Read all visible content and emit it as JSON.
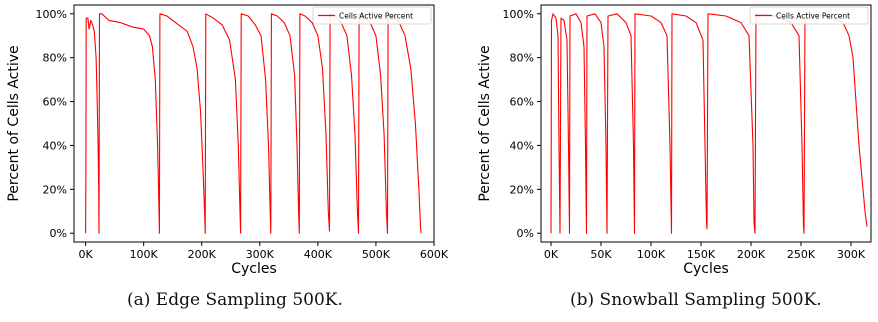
{
  "figure": {
    "captions": [
      "(a) Edge Sampling 500K.",
      "(b) Snowball Sampling 500K."
    ]
  },
  "chart_data": [
    {
      "type": "line",
      "panel": "a",
      "xlabel": "Cycles",
      "ylabel": "Percent of Cells Active",
      "xlim": [
        -20000,
        600000
      ],
      "ylim": [
        -4,
        104
      ],
      "x_ticks": [
        0,
        100000,
        200000,
        300000,
        400000,
        500000,
        600000
      ],
      "x_tick_labels": [
        "0K",
        "100K",
        "200K",
        "300K",
        "400K",
        "500K",
        "600K"
      ],
      "y_ticks": [
        0,
        20,
        40,
        60,
        80,
        100
      ],
      "y_tick_labels": [
        "0%",
        "20%",
        "40%",
        "60%",
        "80%",
        "100%"
      ],
      "legend": {
        "position": "top-right",
        "entries": [
          "Cells Active Percent"
        ]
      },
      "series": [
        {
          "name": "Cells Active Percent",
          "color": "#ff0000",
          "points": [
            [
              0,
              0
            ],
            [
              500,
              28
            ],
            [
              1000,
              98
            ],
            [
              4000,
              98
            ],
            [
              6000,
              93
            ],
            [
              9000,
              97
            ],
            [
              12000,
              95
            ],
            [
              15000,
              92
            ],
            [
              18000,
              80
            ],
            [
              20000,
              60
            ],
            [
              21500,
              40
            ],
            [
              22500,
              20
            ],
            [
              23000,
              0
            ],
            [
              24000,
              100
            ],
            [
              28000,
              100
            ],
            [
              40000,
              97
            ],
            [
              60000,
              96
            ],
            [
              80000,
              94
            ],
            [
              100000,
              93
            ],
            [
              110000,
              90
            ],
            [
              115000,
              85
            ],
            [
              120000,
              70
            ],
            [
              124000,
              40
            ],
            [
              126000,
              15
            ],
            [
              127000,
              0
            ],
            [
              128000,
              100
            ],
            [
              140000,
              99
            ],
            [
              160000,
              95
            ],
            [
              175000,
              92
            ],
            [
              185000,
              85
            ],
            [
              192000,
              75
            ],
            [
              198000,
              55
            ],
            [
              202000,
              30
            ],
            [
              205000,
              10
            ],
            [
              206000,
              0
            ],
            [
              207000,
              100
            ],
            [
              220000,
              98
            ],
            [
              235000,
              95
            ],
            [
              248000,
              88
            ],
            [
              258000,
              70
            ],
            [
              263000,
              40
            ],
            [
              266000,
              8
            ],
            [
              267000,
              0
            ],
            [
              268000,
              100
            ],
            [
              280000,
              99
            ],
            [
              292000,
              95
            ],
            [
              302000,
              90
            ],
            [
              310000,
              70
            ],
            [
              315000,
              40
            ],
            [
              318000,
              8
            ],
            [
              319000,
              0
            ],
            [
              320000,
              100
            ],
            [
              330000,
              99
            ],
            [
              342000,
              96
            ],
            [
              352000,
              90
            ],
            [
              360000,
              72
            ],
            [
              364000,
              40
            ],
            [
              367000,
              8
            ],
            [
              368000,
              0
            ],
            [
              369000,
              100
            ],
            [
              378000,
              99
            ],
            [
              390000,
              96
            ],
            [
              400000,
              90
            ],
            [
              408000,
              75
            ],
            [
              414000,
              45
            ],
            [
              418000,
              10
            ],
            [
              420000,
              1
            ],
            [
              421000,
              100
            ],
            [
              430000,
              99
            ],
            [
              440000,
              96
            ],
            [
              450000,
              90
            ],
            [
              458000,
              72
            ],
            [
              464000,
              45
            ],
            [
              468000,
              10
            ],
            [
              470000,
              0
            ],
            [
              471000,
              100
            ],
            [
              480000,
              99
            ],
            [
              490000,
              96
            ],
            [
              500000,
              90
            ],
            [
              508000,
              72
            ],
            [
              514000,
              45
            ],
            [
              518000,
              10
            ],
            [
              520000,
              0
            ],
            [
              521000,
              100
            ],
            [
              530000,
              99
            ],
            [
              540000,
              96
            ],
            [
              550000,
              90
            ],
            [
              560000,
              75
            ],
            [
              568000,
              50
            ],
            [
              574000,
              20
            ],
            [
              577000,
              2
            ],
            [
              578000,
              0
            ]
          ]
        }
      ]
    },
    {
      "type": "line",
      "panel": "b",
      "xlabel": "Cycles",
      "ylabel": "Percent of Cells Active",
      "xlim": [
        -10000,
        320000
      ],
      "ylim": [
        -4,
        104
      ],
      "x_ticks": [
        0,
        50000,
        100000,
        150000,
        200000,
        250000,
        300000
      ],
      "x_tick_labels": [
        "0K",
        "50K",
        "100K",
        "150K",
        "200K",
        "250K",
        "300K"
      ],
      "y_ticks": [
        0,
        20,
        40,
        60,
        80,
        100
      ],
      "y_tick_labels": [
        "0%",
        "20%",
        "40%",
        "60%",
        "80%",
        "100%"
      ],
      "legend": {
        "position": "top-right",
        "entries": [
          "Cells Active Percent"
        ]
      },
      "series": [
        {
          "name": "Cells Active Percent",
          "color": "#ff0000",
          "points": [
            [
              0,
              0
            ],
            [
              500,
              97
            ],
            [
              2000,
              100
            ],
            [
              5000,
              98
            ],
            [
              7000,
              90
            ],
            [
              8000,
              40
            ],
            [
              9000,
              0
            ],
            [
              10000,
              98
            ],
            [
              13000,
              97
            ],
            [
              16000,
              88
            ],
            [
              17500,
              40
            ],
            [
              18500,
              0
            ],
            [
              19000,
              99
            ],
            [
              25000,
              100
            ],
            [
              30000,
              96
            ],
            [
              33000,
              85
            ],
            [
              34500,
              40
            ],
            [
              35500,
              0
            ],
            [
              36000,
              99
            ],
            [
              44000,
              100
            ],
            [
              50000,
              96
            ],
            [
              53000,
              85
            ],
            [
              55000,
              40
            ],
            [
              56000,
              0
            ],
            [
              57000,
              99
            ],
            [
              66000,
              100
            ],
            [
              75000,
              96
            ],
            [
              80000,
              90
            ],
            [
              82500,
              40
            ],
            [
              83500,
              0
            ],
            [
              84000,
              100
            ],
            [
              100000,
              99
            ],
            [
              110000,
              96
            ],
            [
              116000,
              90
            ],
            [
              119000,
              40
            ],
            [
              120500,
              0
            ],
            [
              121000,
              100
            ],
            [
              135000,
              99
            ],
            [
              145000,
              96
            ],
            [
              152000,
              88
            ],
            [
              154000,
              40
            ],
            [
              155500,
              5
            ],
            [
              156000,
              2
            ],
            [
              157000,
              100
            ],
            [
              175000,
              99
            ],
            [
              190000,
              96
            ],
            [
              198000,
              90
            ],
            [
              202000,
              40
            ],
            [
              203000,
              5
            ],
            [
              204000,
              0
            ],
            [
              205000,
              100
            ],
            [
              225000,
              99
            ],
            [
              240000,
              96
            ],
            [
              248000,
              90
            ],
            [
              251000,
              40
            ],
            [
              252500,
              3
            ],
            [
              253000,
              0
            ],
            [
              254000,
              100
            ],
            [
              275000,
              99
            ],
            [
              292000,
              96
            ],
            [
              298000,
              90
            ],
            [
              302000,
              80
            ],
            [
              305000,
              60
            ],
            [
              308000,
              40
            ],
            [
              311000,
              25
            ],
            [
              314000,
              10
            ],
            [
              316000,
              3
            ]
          ]
        }
      ]
    }
  ]
}
